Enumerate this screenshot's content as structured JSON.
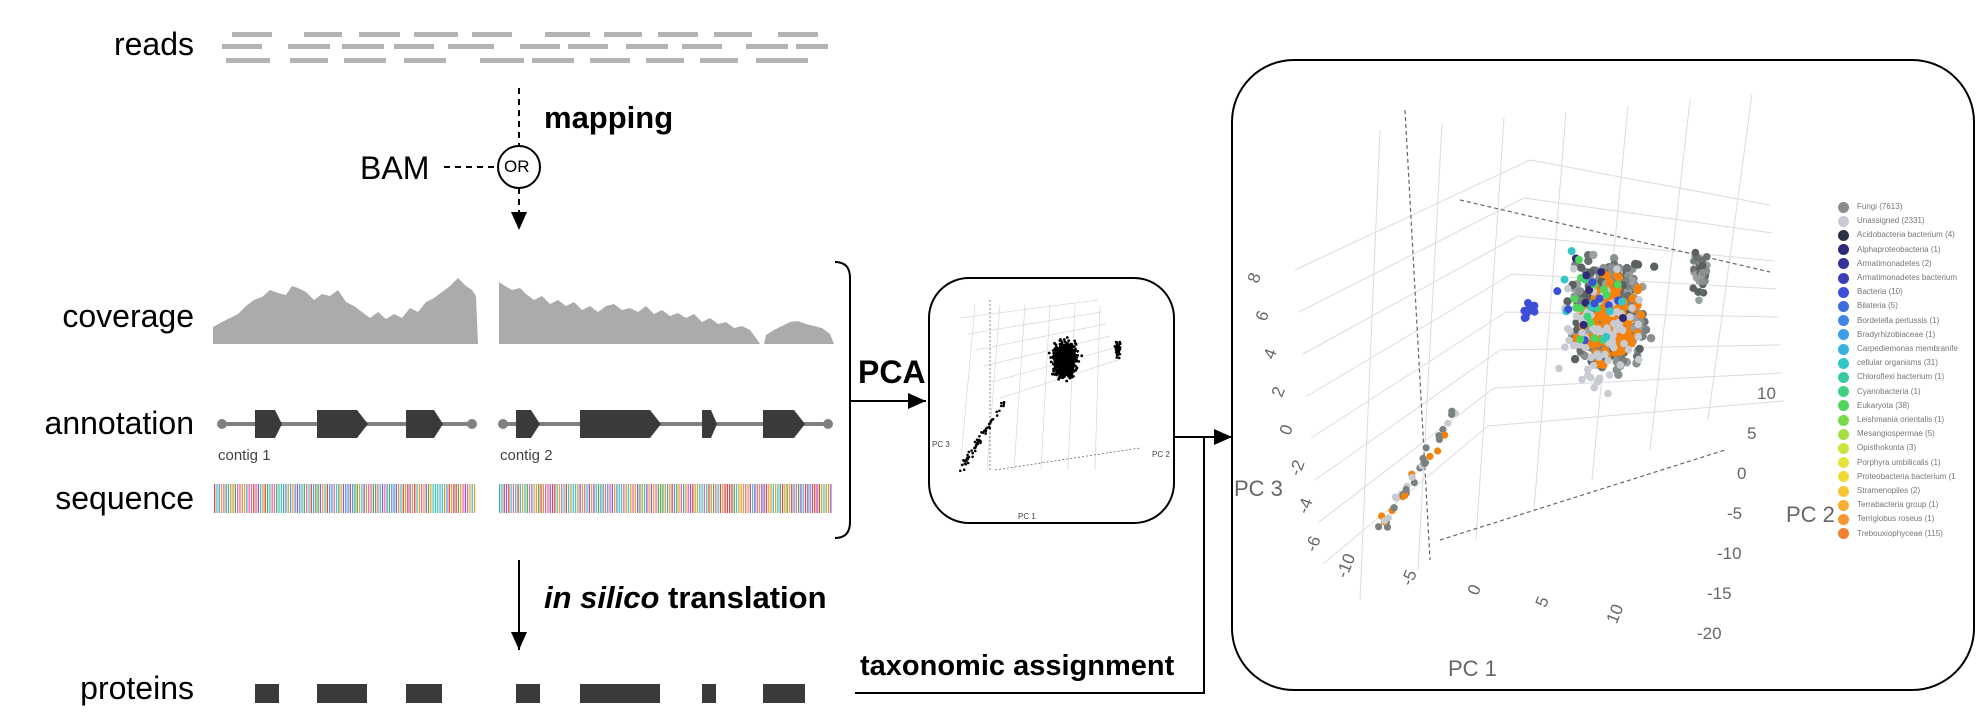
{
  "labels": {
    "reads": "reads",
    "bam": "BAM",
    "or": "OR",
    "mapping": "mapping",
    "coverage": "coverage",
    "annotation": "annotation",
    "sequence": "sequence",
    "proteins": "proteins",
    "contig1": "contig 1",
    "contig2": "contig 2",
    "pca": "PCA",
    "in_silico": "in silico",
    "translation": " translation",
    "taxonomic": "taxonomic assignment"
  },
  "mini_pca": {
    "axis_pc1": "PC 1",
    "axis_pc2": "PC 2",
    "axis_pc3": "PC 3"
  },
  "big_pca": {
    "axis_pc1": "PC 1",
    "axis_pc2": "PC 2",
    "axis_pc3": "PC 3",
    "pc3_ticks": [
      "8",
      "6",
      "4",
      "2",
      "0",
      "-2",
      "-4",
      "-6"
    ],
    "pc2_ticks": [
      "10",
      "5",
      "0",
      "-5",
      "-10",
      "-15",
      "-20"
    ],
    "pc1_ticks": [
      "-10",
      "-5",
      "0",
      "5",
      "10"
    ]
  },
  "legend": [
    {
      "label": "Fungi (7613)",
      "color": "#8c8c8c"
    },
    {
      "label": "Unassigned (2331)",
      "color": "#c8ccd2"
    },
    {
      "label": "Acidobacteria bacterium (4)",
      "color": "#2d2f45"
    },
    {
      "label": "Alphaproteobacteria (1)",
      "color": "#2e2a78"
    },
    {
      "label": "Armatimonadetes (2)",
      "color": "#34319a"
    },
    {
      "label": "Armatimonadetes bacterium",
      "color": "#3a3fb8"
    },
    {
      "label": "Bacteria (10)",
      "color": "#3c4fd6"
    },
    {
      "label": "Bilateria (5)",
      "color": "#3e6be0"
    },
    {
      "label": "Bordetella pertussis (1)",
      "color": "#3f86e6"
    },
    {
      "label": "Bradyrhizobiaceae (1)",
      "color": "#3c9ee6"
    },
    {
      "label": "Carpediemonas membranife",
      "color": "#37b3df"
    },
    {
      "label": "cellular organisms (31)",
      "color": "#32c6c7"
    },
    {
      "label": "Chloroflexi bacterium (1)",
      "color": "#38c9a4"
    },
    {
      "label": "Cyanobacteria (1)",
      "color": "#3fd080"
    },
    {
      "label": "Eukaryota (38)",
      "color": "#4fd65a"
    },
    {
      "label": "Leishmania orientalis (1)",
      "color": "#77dc48"
    },
    {
      "label": "Mesangiospermae (5)",
      "color": "#a2e043"
    },
    {
      "label": "Opisthokonta (3)",
      "color": "#c9e43f"
    },
    {
      "label": "Porphyra umbilicalis (1)",
      "color": "#e6e33d"
    },
    {
      "label": "Proteobacteria bacterium (1",
      "color": "#f2d93a"
    },
    {
      "label": "Stramenopiles (2)",
      "color": "#f6c436"
    },
    {
      "label": "Terrabacteria group (1)",
      "color": "#f7ae33"
    },
    {
      "label": "Terriglobus roseus (1)",
      "color": "#f79530"
    },
    {
      "label": "Trebouxiophyceae (115)",
      "color": "#f07f2e"
    }
  ],
  "colors": {
    "dark": "#3a3a3a",
    "gray": "#ababab",
    "read": "#b3b3b3",
    "fungi": "#6f7474",
    "orange": "#f4820c"
  }
}
